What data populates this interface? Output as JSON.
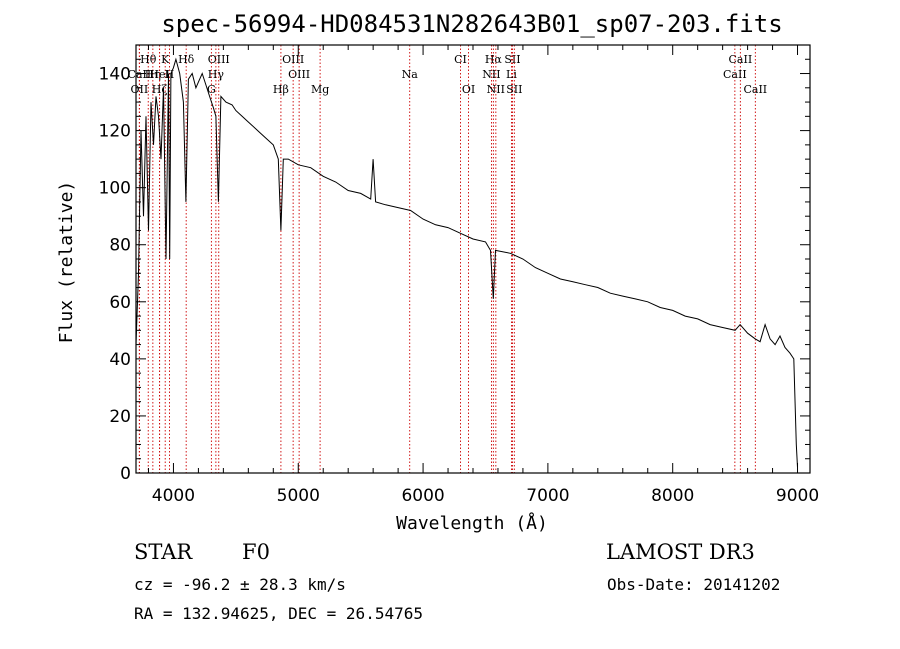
{
  "chart_data": {
    "type": "line",
    "title": "spec-56994-HD084531N282643B01_sp07-203.fits",
    "xlabel": "Wavelength (Å)",
    "ylabel": "Flux (relative)",
    "xlim": [
      3700,
      9100
    ],
    "ylim": [
      0,
      150
    ],
    "xticks": [
      4000,
      5000,
      6000,
      7000,
      8000,
      9000
    ],
    "yticks": [
      0,
      20,
      40,
      60,
      80,
      100,
      120,
      140
    ],
    "series": [
      {
        "name": "spectrum",
        "x": [
          3700,
          3720,
          3740,
          3760,
          3780,
          3800,
          3820,
          3840,
          3860,
          3880,
          3900,
          3920,
          3940,
          3960,
          3970,
          3980,
          4000,
          4020,
          4050,
          4080,
          4100,
          4120,
          4150,
          4180,
          4200,
          4230,
          4260,
          4290,
          4320,
          4340,
          4360,
          4380,
          4420,
          4470,
          4500,
          4550,
          4600,
          4650,
          4700,
          4750,
          4800,
          4840,
          4861,
          4880,
          4920,
          5000,
          5100,
          5200,
          5300,
          5400,
          5500,
          5580,
          5600,
          5620,
          5700,
          5800,
          5900,
          6000,
          6100,
          6200,
          6300,
          6400,
          6500,
          6540,
          6563,
          6580,
          6700,
          6800,
          6900,
          7000,
          7100,
          7200,
          7300,
          7400,
          7500,
          7600,
          7700,
          7800,
          7900,
          8000,
          8100,
          8200,
          8300,
          8400,
          8500,
          8540,
          8600,
          8662,
          8700,
          8740,
          8780,
          8820,
          8860,
          8900,
          8940,
          8970,
          8990,
          9000
        ],
        "y": [
          45,
          70,
          120,
          90,
          125,
          85,
          130,
          115,
          132,
          125,
          110,
          135,
          75,
          140,
          75,
          140,
          142,
          145,
          140,
          130,
          95,
          138,
          140,
          135,
          137,
          140,
          136,
          132,
          128,
          125,
          95,
          132,
          130,
          129,
          127,
          125,
          123,
          121,
          119,
          117,
          115,
          110,
          85,
          110,
          110,
          108,
          107,
          104,
          102,
          99,
          98,
          96,
          110,
          95,
          94,
          93,
          92,
          89,
          87,
          86,
          84,
          82,
          81,
          78,
          61,
          78,
          77,
          75,
          72,
          70,
          68,
          67,
          66,
          65,
          63,
          62,
          61,
          60,
          58,
          57,
          55,
          54,
          52,
          51,
          50,
          52,
          49,
          47,
          46,
          52,
          47,
          45,
          48,
          44,
          42,
          40,
          10,
          2
        ]
      }
    ],
    "spectral_lines": [
      {
        "label": "Hθ",
        "wavelength": 3798,
        "row": 1
      },
      {
        "label": "K",
        "wavelength": 3934,
        "row": 1
      },
      {
        "label": "Hδ",
        "wavelength": 4102,
        "row": 1
      },
      {
        "label": "OIII",
        "wavelength": 4363,
        "row": 1
      },
      {
        "label": "OIII",
        "wavelength": 4959,
        "row": 1
      },
      {
        "label": "CI",
        "wavelength": 6300,
        "row": 1
      },
      {
        "label": "Hα",
        "wavelength": 6563,
        "row": 1
      },
      {
        "label": "SII",
        "wavelength": 6716,
        "row": 1
      },
      {
        "label": "CaII",
        "wavelength": 8542,
        "row": 1
      },
      {
        "label": "CaII",
        "wavelength": 3727,
        "row": 2
      },
      {
        "label": "Hη",
        "wavelength": 3835,
        "row": 2
      },
      {
        "label": "HeI",
        "wavelength": 3889,
        "row": 2
      },
      {
        "label": "H",
        "wavelength": 3968,
        "row": 2
      },
      {
        "label": "Hγ",
        "wavelength": 4340,
        "row": 2
      },
      {
        "label": "OIII",
        "wavelength": 5007,
        "row": 2
      },
      {
        "label": "Na",
        "wavelength": 5893,
        "row": 2
      },
      {
        "label": "NII",
        "wavelength": 6548,
        "row": 2
      },
      {
        "label": "Li",
        "wavelength": 6708,
        "row": 2
      },
      {
        "label": "CaII",
        "wavelength": 8498,
        "row": 2
      },
      {
        "label": "OII",
        "wavelength": 3727,
        "row": 3
      },
      {
        "label": "Hζ",
        "wavelength": 3889,
        "row": 3
      },
      {
        "label": "G",
        "wavelength": 4304,
        "row": 3
      },
      {
        "label": "Hβ",
        "wavelength": 4861,
        "row": 3
      },
      {
        "label": "Mg",
        "wavelength": 5175,
        "row": 3
      },
      {
        "label": "OI",
        "wavelength": 6364,
        "row": 3
      },
      {
        "label": "NII",
        "wavelength": 6583,
        "row": 3
      },
      {
        "label": "SII",
        "wavelength": 6731,
        "row": 3
      },
      {
        "label": "CaII",
        "wavelength": 8662,
        "row": 3
      }
    ]
  },
  "info": {
    "class": "STAR",
    "subclass": "F0",
    "survey": "LAMOST DR3",
    "redshift": "cz = -96.2 ± 28.3 km/s",
    "obs_date": "Obs-Date: 20141202",
    "coords": "RA = 132.94625, DEC =  26.54765"
  }
}
